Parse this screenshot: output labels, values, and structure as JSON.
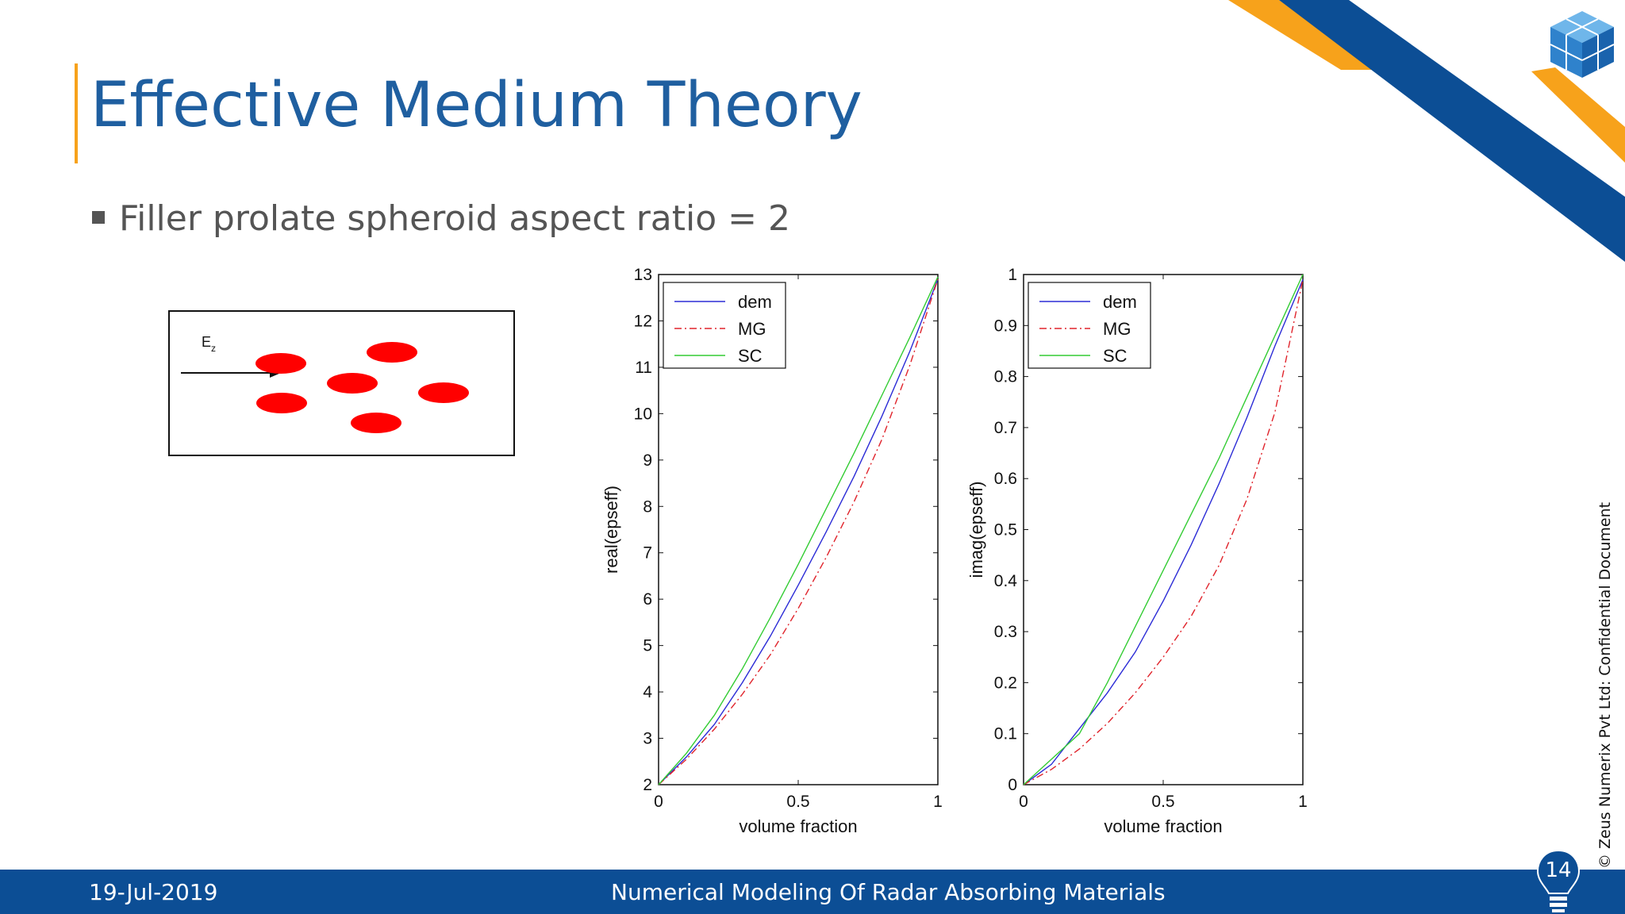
{
  "slide": {
    "title": "Effective Medium Theory",
    "bullet": "Filler prolate spheroid aspect ratio = 2",
    "diagram_label": "E",
    "diagram_label_sub": "z",
    "date": "19-Jul-2019",
    "footer_title": "Numerical Modeling Of Radar Absorbing Materials",
    "page_number": "14",
    "side_note": "© Zeus Numerix Pvt Ltd: Confidential Document"
  },
  "colors": {
    "brand_blue": "#0c4e95",
    "accent_orange": "#f7a21b",
    "title_blue": "#1f5fa0",
    "dem": "#2b2bd6",
    "MG": "#e0242c",
    "SC": "#33cc33",
    "particles": "#ff0000"
  },
  "icons": [
    "cube-logo-icon",
    "lightbulb-icon",
    "arrow-icon"
  ],
  "chart_data": [
    {
      "type": "line",
      "xlabel": "volume fraction",
      "ylabel": "real(epseff)",
      "xlim": [
        0,
        1
      ],
      "ylim": [
        2,
        13
      ],
      "xticks": [
        "0",
        "0.5",
        "1"
      ],
      "yticks": [
        "2",
        "3",
        "4",
        "5",
        "6",
        "7",
        "8",
        "9",
        "10",
        "11",
        "12",
        "13"
      ],
      "legend": "top-left",
      "x": [
        0,
        0.1,
        0.2,
        0.3,
        0.4,
        0.5,
        0.6,
        0.7,
        0.8,
        0.9,
        1.0
      ],
      "series": [
        {
          "name": "dem",
          "style": "solid",
          "values": [
            2.0,
            2.6,
            3.3,
            4.2,
            5.2,
            6.3,
            7.45,
            8.65,
            9.95,
            11.35,
            12.9
          ]
        },
        {
          "name": "MG",
          "style": "dashdot",
          "values": [
            2.0,
            2.55,
            3.2,
            3.95,
            4.8,
            5.8,
            6.9,
            8.1,
            9.45,
            11.05,
            12.9
          ]
        },
        {
          "name": "SC",
          "style": "solid",
          "values": [
            2.0,
            2.68,
            3.5,
            4.5,
            5.6,
            6.75,
            7.95,
            9.15,
            10.4,
            11.65,
            12.95
          ]
        }
      ]
    },
    {
      "type": "line",
      "xlabel": "volume fraction",
      "ylabel": "imag(epseff)",
      "xlim": [
        0,
        1
      ],
      "ylim": [
        0,
        1
      ],
      "xticks": [
        "0",
        "0.5",
        "1"
      ],
      "yticks": [
        "0",
        "0.1",
        "0.2",
        "0.3",
        "0.4",
        "0.5",
        "0.6",
        "0.7",
        "0.8",
        "0.9",
        "1"
      ],
      "legend": "top-left",
      "x": [
        0,
        0.1,
        0.2,
        0.3,
        0.4,
        0.5,
        0.6,
        0.7,
        0.8,
        0.9,
        1.0
      ],
      "series": [
        {
          "name": "dem",
          "style": "solid",
          "values": [
            0.0,
            0.04,
            0.11,
            0.18,
            0.26,
            0.36,
            0.47,
            0.59,
            0.72,
            0.86,
            0.99
          ]
        },
        {
          "name": "MG",
          "style": "dashdot",
          "values": [
            0.0,
            0.03,
            0.07,
            0.12,
            0.18,
            0.25,
            0.33,
            0.43,
            0.56,
            0.73,
            0.99
          ]
        },
        {
          "name": "SC",
          "style": "solid",
          "values": [
            0.0,
            0.05,
            0.1,
            0.2,
            0.31,
            0.42,
            0.53,
            0.64,
            0.76,
            0.88,
            1.0
          ]
        }
      ]
    }
  ]
}
